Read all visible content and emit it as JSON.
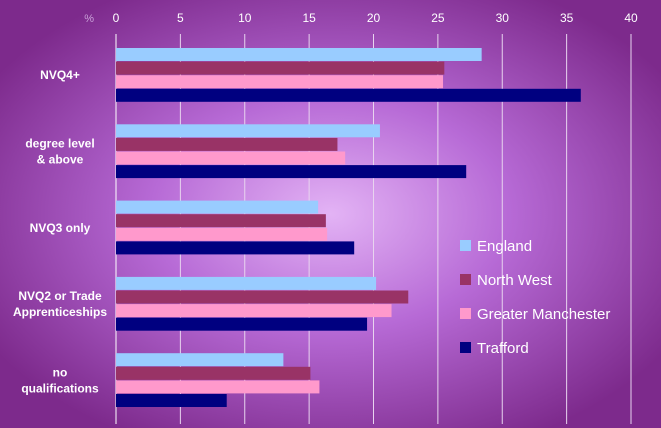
{
  "chart_data": {
    "type": "bar",
    "orientation": "horizontal",
    "categories": [
      [
        "NVQ4+"
      ],
      [
        "degree level",
        "& above"
      ],
      [
        "NVQ3 only"
      ],
      [
        "NVQ2 or Trade",
        "Apprenticeships"
      ],
      [
        "no",
        "qualifications"
      ]
    ],
    "series": [
      {
        "name": "England",
        "color": "#99ccff",
        "values": [
          28.4,
          20.5,
          15.7,
          20.2,
          13.0
        ]
      },
      {
        "name": "North West",
        "color": "#993366",
        "values": [
          25.5,
          17.2,
          16.3,
          22.7,
          15.1
        ]
      },
      {
        "name": "Greater Manchester",
        "color": "#ff99cc",
        "values": [
          25.4,
          17.8,
          16.4,
          21.4,
          15.8
        ]
      },
      {
        "name": "Trafford",
        "color": "#000080",
        "values": [
          36.1,
          27.2,
          18.5,
          19.5,
          8.6
        ]
      }
    ],
    "xaxis": {
      "unit": "%",
      "range": [
        0,
        40
      ],
      "ticks": [
        0,
        5,
        10,
        15,
        20,
        25,
        30,
        35,
        40
      ]
    },
    "grid": true,
    "legend_position": "right"
  }
}
